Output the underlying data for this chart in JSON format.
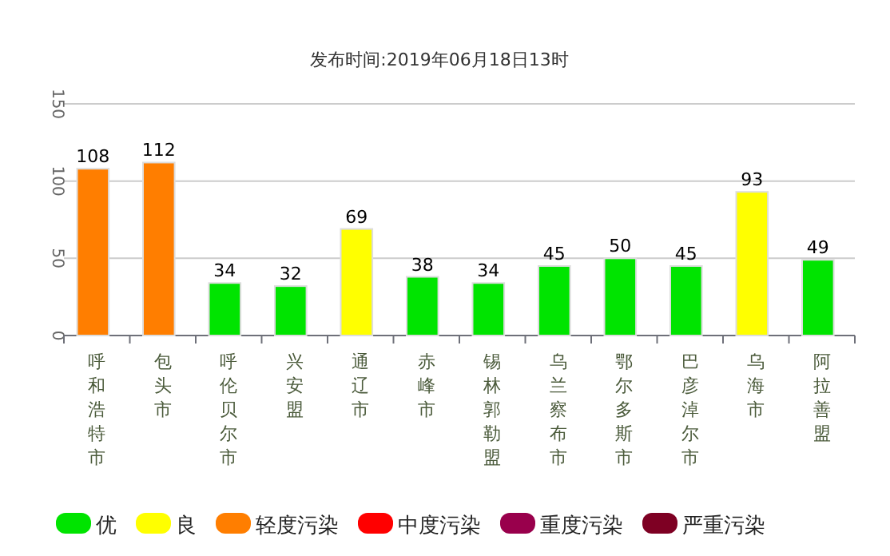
{
  "chart_data": {
    "type": "bar",
    "title": "发布时间:2019年06月18日13时",
    "categories": [
      "呼和浩特市",
      "包头市",
      "呼伦贝尔市",
      "兴安盟",
      "通辽市",
      "赤峰市",
      "锡林郭勒盟",
      "乌兰察布市",
      "鄂尔多斯市",
      "巴彦淖尔市",
      "乌海市",
      "阿拉善盟"
    ],
    "series": [
      {
        "name": "优",
        "color": "#00e400",
        "values": [
          null,
          null,
          34,
          32,
          null,
          38,
          34,
          45,
          50,
          45,
          null,
          49
        ]
      },
      {
        "name": "良",
        "color": "#ffff00",
        "values": [
          null,
          null,
          null,
          null,
          69,
          null,
          null,
          null,
          null,
          null,
          93,
          null
        ]
      },
      {
        "name": "轻度污染",
        "color": "#ff7e00",
        "values": [
          108,
          112,
          null,
          null,
          null,
          null,
          null,
          null,
          null,
          null,
          null,
          null
        ]
      },
      {
        "name": "中度污染",
        "color": "#ff0000",
        "values": [
          null,
          null,
          null,
          null,
          null,
          null,
          null,
          null,
          null,
          null,
          null,
          null
        ]
      },
      {
        "name": "重度污染",
        "color": "#99004c",
        "values": [
          null,
          null,
          null,
          null,
          null,
          null,
          null,
          null,
          null,
          null,
          null,
          null
        ]
      },
      {
        "name": "严重污染",
        "color": "#7e0023",
        "values": [
          null,
          null,
          null,
          null,
          null,
          null,
          null,
          null,
          null,
          null,
          null,
          null
        ]
      }
    ],
    "ylim": [
      0,
      150
    ],
    "yticks": [
      0,
      50,
      100,
      150
    ],
    "grid": "y",
    "legend": "bottom",
    "data_labels": true
  }
}
